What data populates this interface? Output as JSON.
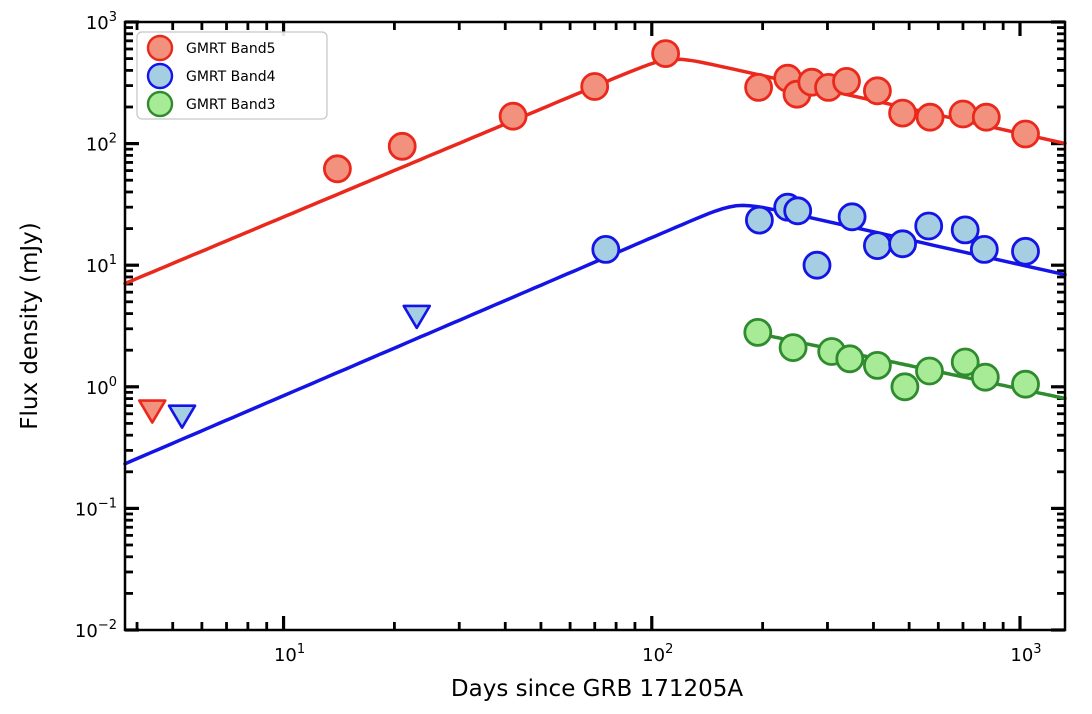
{
  "figure": {
    "title": "",
    "xlabel": "Days since GRB 171205A",
    "ylabel": "Flux density (mJy)"
  },
  "chart_data": {
    "type": "scatter",
    "title": "",
    "xlabel": "Days since GRB 171205A",
    "ylabel": "Flux density (mJy)",
    "xscale": "log",
    "yscale": "log",
    "xlim": [
      3.71,
      1325
    ],
    "ylim": [
      0.01,
      1000
    ],
    "grid": false,
    "legend_position": "upper-left",
    "x_major_ticks": [
      10,
      100,
      1000
    ],
    "y_major_ticks": [
      0.01,
      0.1,
      1,
      10,
      100,
      1000
    ],
    "series": [
      {
        "name": "GMRT Band5",
        "short_name": "band5",
        "marker": "circle",
        "edge_color": "#eb281c",
        "fill_color": "#f2917d",
        "line_color": "#eb281c",
        "points": [
          [
            14,
            62
          ],
          [
            21,
            95
          ],
          [
            42,
            168
          ],
          [
            70,
            295
          ],
          [
            109,
            550
          ],
          [
            195,
            290
          ],
          [
            234,
            345
          ],
          [
            248,
            255
          ],
          [
            272,
            320
          ],
          [
            302,
            290
          ],
          [
            338,
            325
          ],
          [
            410,
            272
          ],
          [
            480,
            178
          ],
          [
            570,
            165
          ],
          [
            700,
            175
          ],
          [
            810,
            165
          ],
          [
            1035,
            120
          ]
        ],
        "upper_limits": [
          [
            4.4,
            0.65
          ]
        ],
        "model_line": {
          "form": "smoothly-broken-power-law",
          "t_break": 112,
          "f_peak": 536,
          "rise_index": 1.27,
          "decay_index": -0.678,
          "smoothness": 8,
          "t_range": [
            3.71,
            1325
          ]
        }
      },
      {
        "name": "GMRT Band4",
        "short_name": "band4",
        "marker": "circle",
        "edge_color": "#1414e6",
        "fill_color": "#a6cee3",
        "line_color": "#1414e6",
        "points": [
          [
            75,
            13.5
          ],
          [
            196,
            23.5
          ],
          [
            234,
            30
          ],
          [
            249,
            28
          ],
          [
            281,
            10
          ],
          [
            350,
            25
          ],
          [
            410,
            14.5
          ],
          [
            480,
            15
          ],
          [
            565,
            21
          ],
          [
            710,
            19.5
          ],
          [
            800,
            13.5
          ],
          [
            1035,
            13
          ]
        ],
        "upper_limits": [
          [
            5.3,
            0.59
          ],
          [
            23,
            3.9
          ]
        ],
        "model_line": {
          "form": "smoothly-broken-power-law",
          "t_break": 170,
          "f_peak": 33.6,
          "rise_index": 1.3,
          "decay_index": -0.678,
          "smoothness": 8,
          "t_range": [
            3.71,
            1325
          ]
        }
      },
      {
        "name": "GMRT Band3",
        "short_name": "band3",
        "marker": "circle",
        "edge_color": "#2e8b2e",
        "fill_color": "#a8eb96",
        "line_color": "#2e8b2e",
        "points": [
          [
            194,
            2.8
          ],
          [
            242,
            2.1
          ],
          [
            308,
            1.95
          ],
          [
            345,
            1.7
          ],
          [
            410,
            1.5
          ],
          [
            487,
            1.0
          ],
          [
            568,
            1.35
          ],
          [
            710,
            1.6
          ],
          [
            805,
            1.2
          ],
          [
            1035,
            1.05
          ]
        ],
        "upper_limits": [],
        "model_line": {
          "form": "power-law",
          "t_ref": 190,
          "f_ref": 2.78,
          "index": -0.64,
          "t_range": [
            188,
            1325
          ]
        }
      }
    ]
  }
}
